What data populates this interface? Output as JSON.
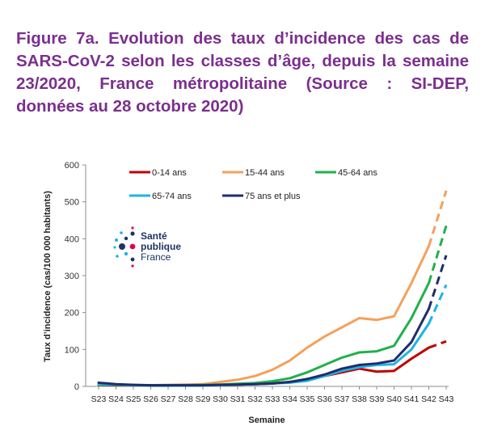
{
  "title": "Figure 7a. Evolution des taux d’incidence des cas de SARS-CoV-2 selon les classes d’âge, depuis la semaine 23/2020, France métropolitaine (Source : SI-DEP, données au 28 octobre 2020)",
  "logo": {
    "line1": "Santé",
    "line2": "publique",
    "line3": "France"
  },
  "chart_data": {
    "type": "line",
    "xlabel": "Semaine",
    "ylabel": "Taux d’incidence (cas/100 000 habitants)",
    "ylim": [
      0,
      600
    ],
    "yticks": [
      0,
      100,
      200,
      300,
      400,
      500,
      600
    ],
    "grid": false,
    "legend": "top",
    "categories": [
      "S23",
      "S24",
      "S25",
      "S26",
      "S27",
      "S28",
      "S29",
      "S30",
      "S31",
      "S32",
      "S33",
      "S34",
      "S35",
      "S36",
      "S37",
      "S38",
      "S39",
      "S40",
      "S41",
      "S42",
      "S43"
    ],
    "projection_segment": "S42 to S43 dashed",
    "series": [
      {
        "name": "0-14 ans",
        "color": "#c00000",
        "values": [
          4,
          3,
          3,
          2,
          2,
          3,
          3,
          4,
          5,
          6,
          8,
          12,
          18,
          28,
          38,
          48,
          40,
          42,
          75,
          105,
          122
        ]
      },
      {
        "name": "15-44 ans",
        "color": "#f5a05a",
        "values": [
          5,
          5,
          4,
          3,
          4,
          5,
          6,
          12,
          18,
          28,
          45,
          70,
          105,
          135,
          160,
          185,
          180,
          190,
          280,
          380,
          530
        ]
      },
      {
        "name": "45-64 ans",
        "color": "#21b04b",
        "values": [
          5,
          4,
          3,
          3,
          3,
          3,
          4,
          5,
          7,
          9,
          14,
          22,
          38,
          58,
          78,
          92,
          95,
          110,
          185,
          280,
          435
        ]
      },
      {
        "name": "65-74 ans",
        "color": "#1fb3e5",
        "values": [
          6,
          5,
          3,
          2,
          2,
          2,
          2,
          3,
          5,
          6,
          8,
          10,
          15,
          28,
          42,
          52,
          58,
          60,
          100,
          170,
          275
        ]
      },
      {
        "name": "75 ans et plus",
        "color": "#1f2d6b",
        "values": [
          10,
          6,
          4,
          3,
          3,
          3,
          3,
          4,
          5,
          6,
          8,
          12,
          20,
          32,
          48,
          58,
          62,
          70,
          120,
          210,
          355
        ]
      }
    ]
  }
}
